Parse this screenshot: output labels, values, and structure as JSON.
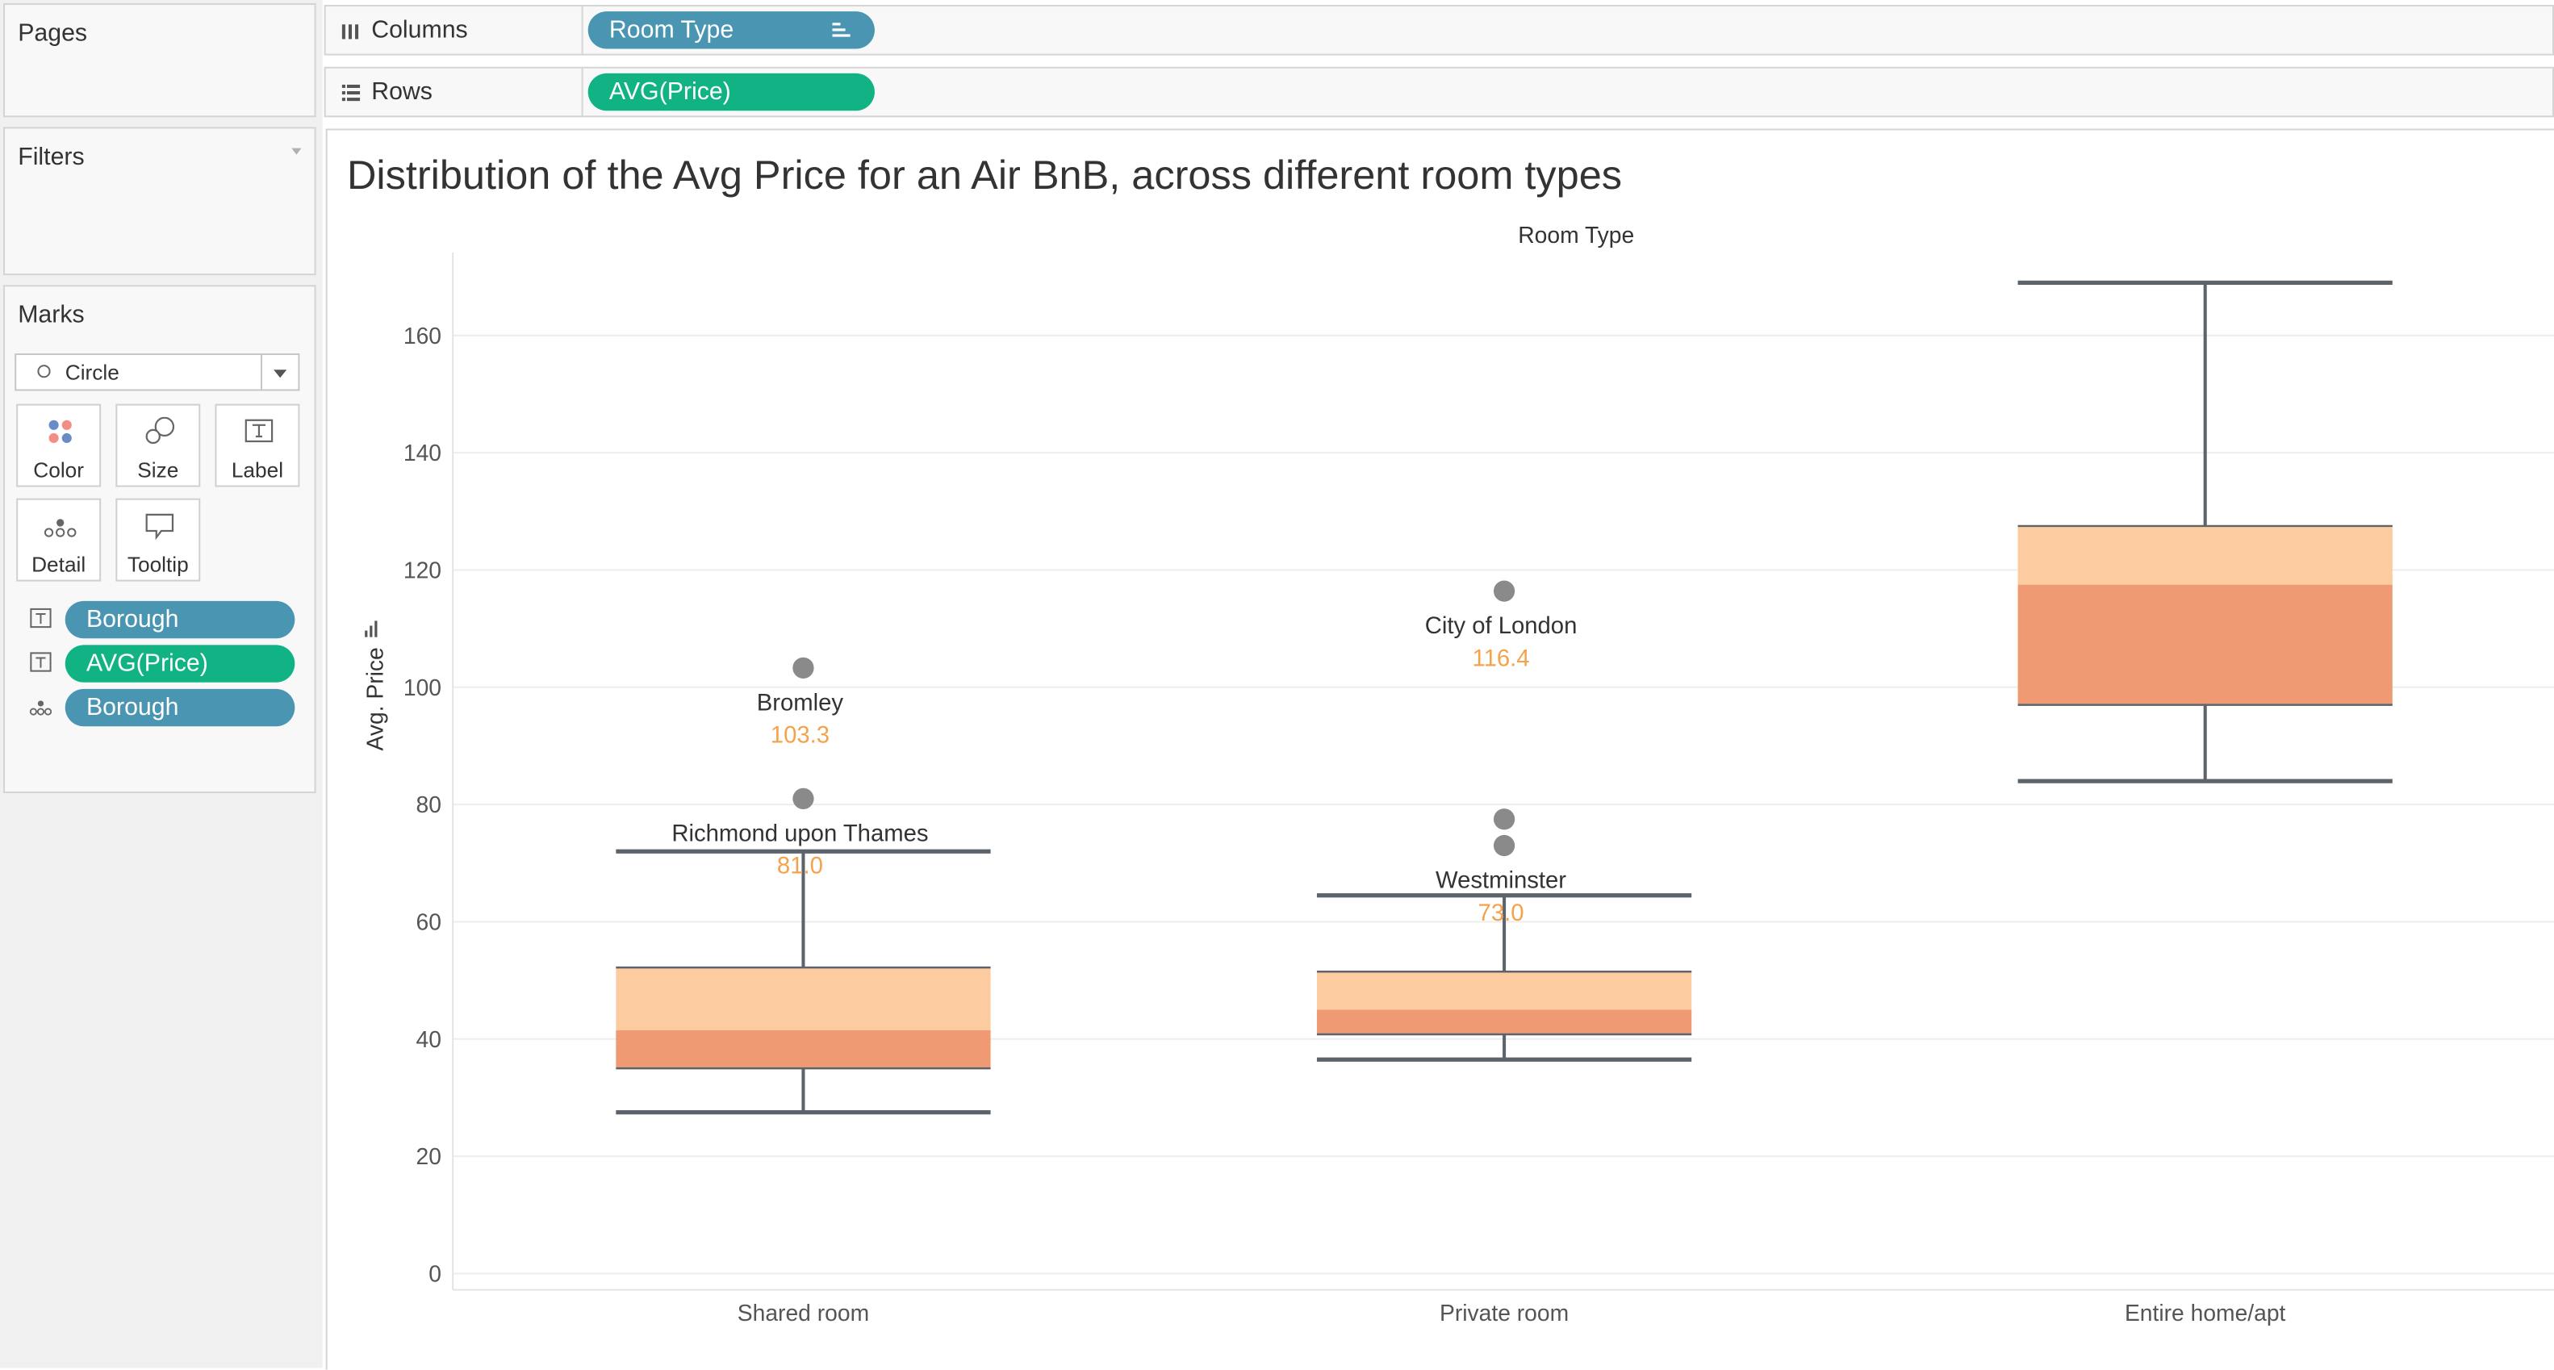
{
  "panels": {
    "pages": "Pages",
    "filters": "Filters",
    "marks": "Marks"
  },
  "marks": {
    "type": "Circle",
    "buttons": {
      "color": "Color",
      "size": "Size",
      "label": "Label",
      "detail": "Detail",
      "tooltip": "Tooltip"
    },
    "fields": [
      "Borough",
      "AVG(Price)",
      "Borough"
    ]
  },
  "shelves": {
    "columns_label": "Columns",
    "columns_pill": "Room Type",
    "rows_label": "Rows",
    "rows_pill": "AVG(Price)"
  },
  "colors": {
    "blue_pill": "#4a95b2",
    "green_pill": "#11b385",
    "box_upper": "#fdcba0",
    "box_lower": "#f09a74",
    "whisker": "#5c636b",
    "point": "#8a8a8a",
    "value_label": "#f4a24c"
  },
  "chart_data": {
    "type": "scatter",
    "title": "Distribution of the Avg Price for an Air BnB, across different room types",
    "column_header": "Room Type",
    "ylabel": "Avg. Price",
    "ylim": [
      0,
      175
    ],
    "yticks": [
      0,
      20,
      40,
      60,
      80,
      100,
      120,
      140,
      160
    ],
    "grid": true,
    "categories": [
      "Shared room",
      "Private room",
      "Entire home/apt"
    ],
    "boxes": [
      {
        "category": "Shared room",
        "whisker_low": 27.5,
        "q1": 35,
        "median": 41.5,
        "q3": 52.2,
        "whisker_high": 72
      },
      {
        "category": "Private room",
        "whisker_low": 36.5,
        "q1": 40.8,
        "median": 45,
        "q3": 51.5,
        "whisker_high": 64.5
      },
      {
        "category": "Entire home/apt",
        "whisker_low": 84,
        "q1": 97,
        "median": 117.5,
        "q3": 127.5,
        "whisker_high": 169
      }
    ],
    "labeled_points": [
      {
        "category": "Shared room",
        "borough": "Bromley",
        "value": 103.3,
        "value_label": "103.3"
      },
      {
        "category": "Shared room",
        "borough": "Richmond upon Thames",
        "value": 81.0,
        "value_label": "81.0"
      },
      {
        "category": "Private room",
        "borough": "City of London",
        "value": 116.4,
        "value_label": "116.4"
      },
      {
        "category": "Private room",
        "borough": "Westminster",
        "value": 73.0,
        "value_label": "73.0"
      }
    ],
    "unlabeled_points": [
      {
        "category": "Private room",
        "value": 77.5
      }
    ]
  }
}
